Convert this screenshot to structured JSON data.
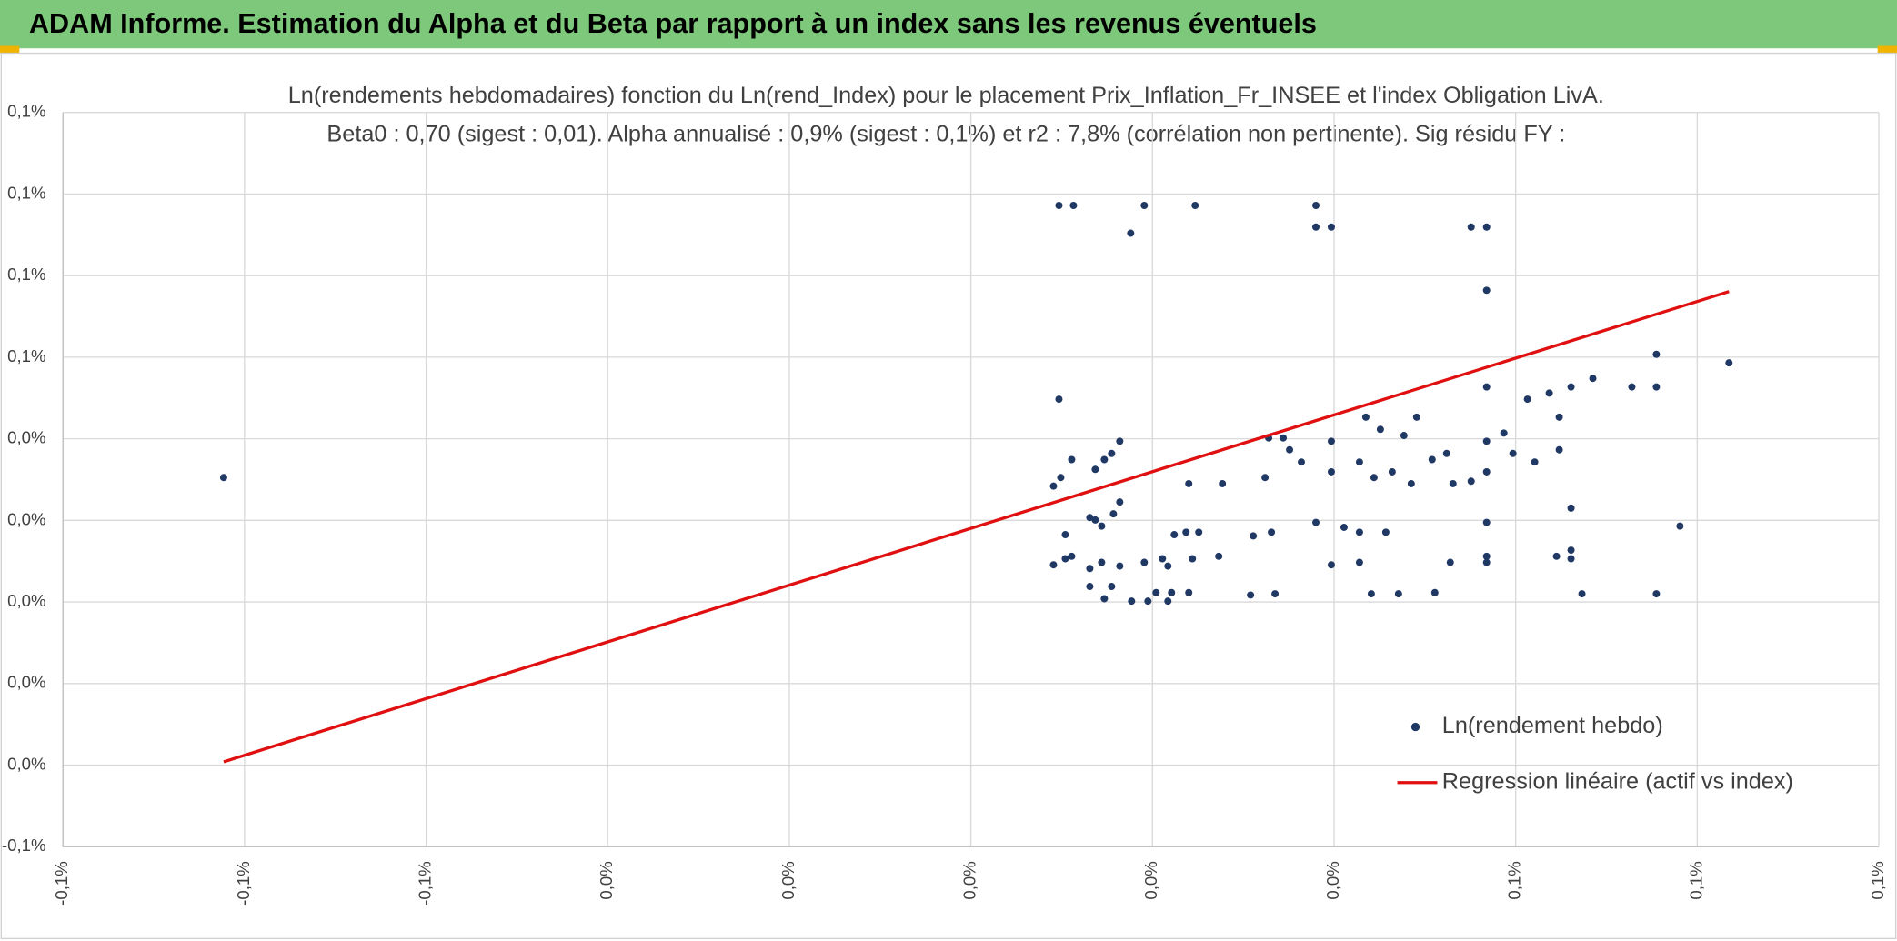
{
  "header": {
    "title": "ADAM Informe. Estimation du Alpha et du Beta par rapport à un index sans les revenus éventuels"
  },
  "chart_data": {
    "type": "scatter",
    "title": "Ln(rendements hebdomadaires) fonction du Ln(rend_Index) pour le placement Prix_Inflation_Fr_INSEE et l'index Obligation LivA.",
    "subtitle": "Beta0 : 0,70 (sigest : 0,01). Alpha annualisé : 0,9% (sigest : 0,1%) et r2 : 7,8% (corrélation non pertinente). Sig résidu FY :",
    "xlim": [
      -0.1,
      0.1
    ],
    "ylim": [
      -0.06,
      0.12
    ],
    "xticks": [
      {
        "value": -0.1,
        "label": "-0,1%"
      },
      {
        "value": -0.08,
        "label": "-0,1%"
      },
      {
        "value": -0.06,
        "label": "-0,1%"
      },
      {
        "value": -0.04,
        "label": "0,0%"
      },
      {
        "value": -0.02,
        "label": "0,0%"
      },
      {
        "value": 0,
        "label": "0,0%"
      },
      {
        "value": 0.02,
        "label": "0,0%"
      },
      {
        "value": 0.04,
        "label": "0,0%"
      },
      {
        "value": 0.06,
        "label": "0,1%"
      },
      {
        "value": 0.08,
        "label": "0,1%"
      },
      {
        "value": 0.1,
        "label": "0,1%"
      }
    ],
    "yticks": [
      {
        "value": -0.06,
        "label": "-0,1%"
      },
      {
        "value": -0.04,
        "label": "0,0%"
      },
      {
        "value": -0.02,
        "label": "0,0%"
      },
      {
        "value": 0,
        "label": "0,0%"
      },
      {
        "value": 0.02,
        "label": "0,0%"
      },
      {
        "value": 0.04,
        "label": "0,0%"
      },
      {
        "value": 0.06,
        "label": "0,1%"
      },
      {
        "value": 0.08,
        "label": "0,1%"
      },
      {
        "value": 0.1,
        "label": "0,1%"
      },
      {
        "value": 0.12,
        "label": "0,1%"
      }
    ],
    "grid": true,
    "legend": "lower right",
    "series": [
      {
        "name": "Ln(rendement hebdo)",
        "color": "#203864",
        "type": "scatter",
        "x": [
          -0.0823,
          0.0097,
          0.0113,
          0.0191,
          0.0247,
          0.038,
          0.0176,
          0.038,
          0.0397,
          0.0551,
          0.0568,
          0.0568,
          0.0755,
          0.0835,
          0.0097,
          0.0568,
          0.0613,
          0.0637,
          0.0661,
          0.0685,
          0.0728,
          0.0755,
          0.0164,
          0.0111,
          0.0099,
          0.0091,
          0.0137,
          0.0147,
          0.0155,
          0.0328,
          0.0344,
          0.0435,
          0.0451,
          0.0491,
          0.0477,
          0.0397,
          0.0397,
          0.0428,
          0.0444,
          0.0464,
          0.0485,
          0.0508,
          0.0524,
          0.0531,
          0.0551,
          0.0568,
          0.0587,
          0.0597,
          0.0621,
          0.0648,
          0.0648,
          0.0568,
          0.0364,
          0.0351,
          0.0324,
          0.0277,
          0.024,
          0.0237,
          0.0251,
          0.0224,
          0.0311,
          0.0331,
          0.038,
          0.0411,
          0.0428,
          0.0457,
          0.0568,
          0.0568,
          0.0568,
          0.0645,
          0.0661,
          0.0661,
          0.0661,
          0.0781,
          0.0164,
          0.0157,
          0.0137,
          0.0144,
          0.0131,
          0.0104,
          0.0091,
          0.0104,
          0.0111,
          0.0144,
          0.0131,
          0.0164,
          0.0191,
          0.0211,
          0.0217,
          0.0244,
          0.0273,
          0.0397,
          0.0428,
          0.0528,
          0.0131,
          0.0147,
          0.0155,
          0.0177,
          0.0195,
          0.0204,
          0.0217,
          0.0221,
          0.024,
          0.0308,
          0.0335,
          0.0441,
          0.0471,
          0.0511,
          0.0673,
          0.0755
        ],
        "values": [
          0.0305,
          0.0972,
          0.0972,
          0.0972,
          0.0972,
          0.0972,
          0.0904,
          0.0919,
          0.0919,
          0.0919,
          0.0919,
          0.0764,
          0.0607,
          0.0586,
          0.0497,
          0.0527,
          0.0497,
          0.0512,
          0.0527,
          0.0548,
          0.0527,
          0.0527,
          0.0394,
          0.0349,
          0.0305,
          0.0284,
          0.0325,
          0.0349,
          0.0364,
          0.0402,
          0.0402,
          0.0453,
          0.0423,
          0.0453,
          0.0408,
          0.0394,
          0.0319,
          0.0343,
          0.0305,
          0.0319,
          0.029,
          0.0349,
          0.0364,
          0.029,
          0.0296,
          0.0319,
          0.0414,
          0.0364,
          0.0343,
          0.0453,
          0.0373,
          0.0394,
          0.0343,
          0.0373,
          0.0305,
          0.029,
          0.029,
          0.0171,
          0.0171,
          0.0165,
          0.0162,
          0.0171,
          0.0195,
          0.0183,
          0.0171,
          0.0171,
          0.0195,
          0.0112,
          0.0097,
          0.0112,
          0.023,
          0.0127,
          0.0106,
          0.0186,
          0.0245,
          0.0216,
          0.0201,
          0.0186,
          0.0207,
          0.0165,
          0.0091,
          0.0106,
          0.0112,
          0.0097,
          0.0082,
          0.0088,
          0.0097,
          0.0106,
          0.0088,
          0.0106,
          0.0112,
          0.0091,
          0.0097,
          0.0097,
          0.0038,
          0.0008,
          0.0038,
          0.0002,
          0.0002,
          0.0023,
          0.0002,
          0.0023,
          0.0023,
          0.0017,
          0.002,
          0.002,
          0.002,
          0.0023,
          0.002,
          0.002
        ]
      },
      {
        "name": "Regression linéaire (actif vs index)",
        "color": "#e01010",
        "type": "line",
        "x": [
          -0.0823,
          0.0835
        ],
        "values": [
          -0.0392,
          0.0761
        ]
      }
    ]
  }
}
